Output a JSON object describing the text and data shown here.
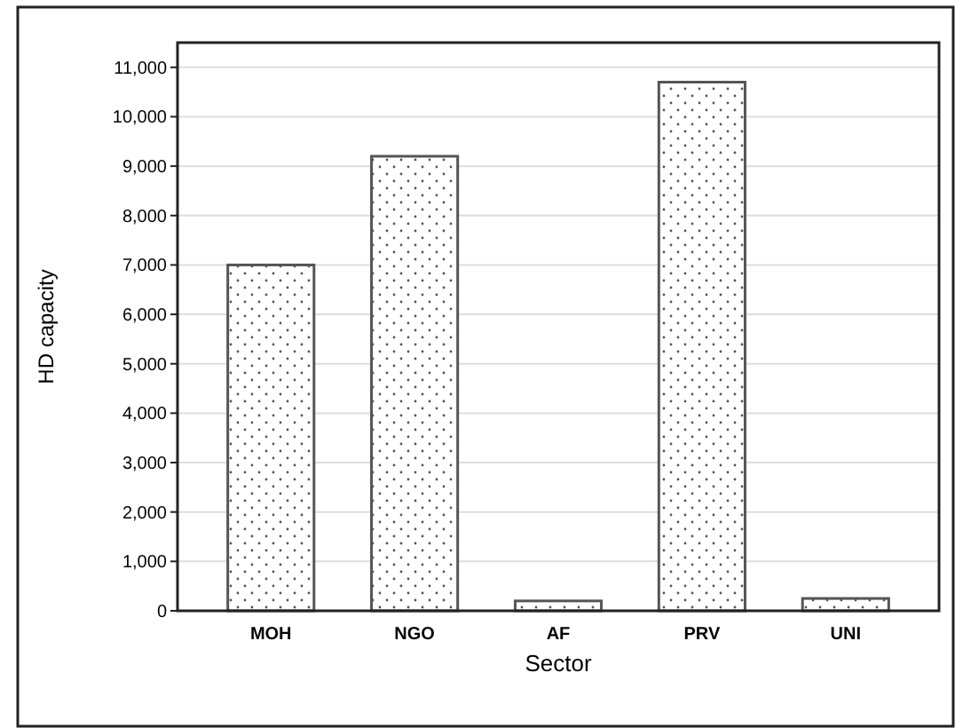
{
  "chart_data": {
    "type": "bar",
    "xlabel": "Sector",
    "ylabel": "HD capacity",
    "categories": [
      "MOH",
      "NGO",
      "AF",
      "PRV",
      "UNI"
    ],
    "values": [
      7000,
      9200,
      200,
      10700,
      250
    ],
    "color": "#555555",
    "ylim": [
      0,
      11500
    ],
    "yticks": [
      0,
      {
        "value": 1000,
        "label": "1,000"
      },
      {
        "value": 2000,
        "label": "2,000"
      },
      {
        "value": 3000,
        "label": "3,000"
      },
      {
        "value": 4000,
        "label": "4,000"
      },
      {
        "value": 5000,
        "label": "5,000"
      },
      {
        "value": 6000,
        "label": "6,000"
      },
      {
        "value": 7000,
        "label": "7,000"
      },
      {
        "value": 8000,
        "label": "8,000"
      },
      {
        "value": 9000,
        "label": "9,000"
      },
      {
        "value": 10000,
        "label": "10,000"
      },
      {
        "value": 11000,
        "label": "11,000"
      }
    ],
    "grid": "y"
  }
}
